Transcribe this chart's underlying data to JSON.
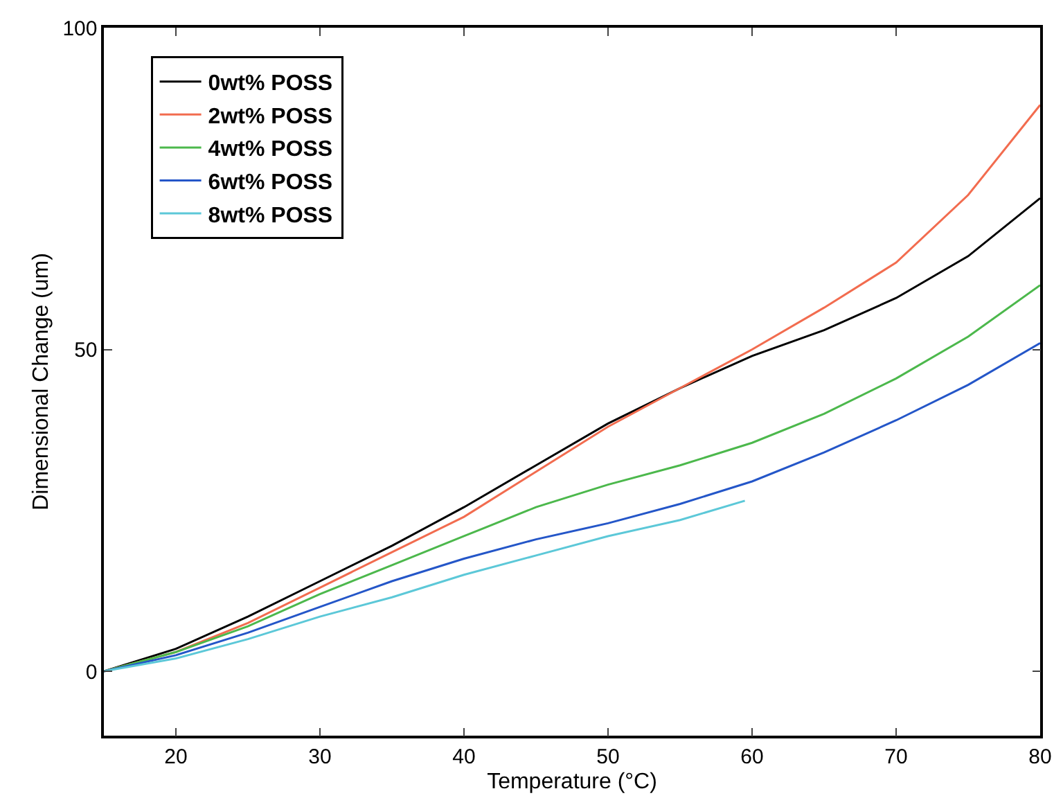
{
  "chart_data": {
    "type": "line",
    "xlabel": "Temperature (°C)",
    "ylabel": "Dimensional Change (um)",
    "xlim": [
      15,
      80
    ],
    "ylim": [
      -10,
      100
    ],
    "xticks": [
      20,
      30,
      40,
      50,
      60,
      70,
      80
    ],
    "yticks": [
      0,
      50,
      100
    ],
    "grid": false,
    "legend": "top left",
    "marker": "none",
    "line_style": "solid",
    "series": [
      {
        "name": "0wt% POSS",
        "color": "#000000",
        "x": [
          15,
          20,
          25,
          30,
          35,
          40,
          45,
          50,
          55,
          60,
          65,
          70,
          75,
          80
        ],
        "values": [
          0,
          3.5,
          8.5,
          14,
          19.5,
          25.5,
          32,
          38.5,
          44,
          49,
          53,
          58,
          64.5,
          73.5
        ]
      },
      {
        "name": "2wt% POSS",
        "color": "#f26c4f",
        "x": [
          15,
          20,
          25,
          30,
          35,
          40,
          45,
          50,
          55,
          60,
          65,
          70,
          75,
          80
        ],
        "values": [
          0,
          3,
          7.5,
          13,
          18.5,
          24,
          31,
          38,
          44,
          50,
          56.5,
          63.5,
          74,
          88
        ]
      },
      {
        "name": "4wt% POSS",
        "color": "#4cb84c",
        "x": [
          15,
          20,
          25,
          30,
          35,
          40,
          45,
          50,
          55,
          60,
          65,
          70,
          75,
          80
        ],
        "values": [
          0,
          3,
          7,
          12,
          16.5,
          21,
          25.5,
          29,
          32,
          35.5,
          40,
          45.5,
          52,
          60
        ]
      },
      {
        "name": "6wt% POSS",
        "color": "#2456c8",
        "x": [
          15,
          20,
          25,
          30,
          35,
          40,
          45,
          50,
          55,
          60,
          65,
          70,
          75,
          80
        ],
        "values": [
          0,
          2.5,
          6,
          10,
          14,
          17.5,
          20.5,
          23,
          26,
          29.5,
          34,
          39,
          44.5,
          51
        ]
      },
      {
        "name": "8wt% POSS",
        "color": "#5cc8d8",
        "x": [
          15,
          20,
          25,
          30,
          35,
          40,
          45,
          50,
          55,
          59.5
        ],
        "values": [
          0,
          2,
          5,
          8.5,
          11.5,
          15,
          18,
          21,
          23.5,
          26.5
        ]
      }
    ]
  }
}
